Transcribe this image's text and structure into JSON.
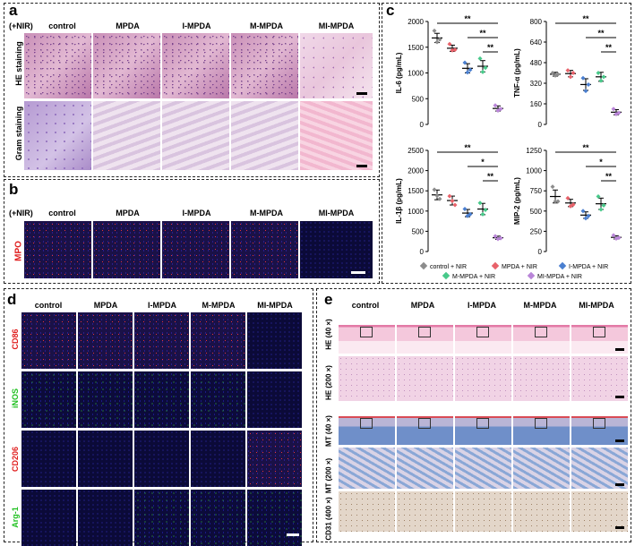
{
  "panel_letters": {
    "a": "a",
    "b": "b",
    "c": "c",
    "d": "d",
    "e": "e"
  },
  "nir_tag": "(+NIR)",
  "groups_abc": [
    "control",
    "MPDA",
    "I-MPDA",
    "M-MPDA",
    "MI-MPDA"
  ],
  "row_labels_a": [
    "HE staining",
    "Gram staining"
  ],
  "row_label_b": "MPO",
  "row_labels_d": [
    "CD86",
    "iNOS",
    "CD206",
    "Arg-1"
  ],
  "row_labels_e": [
    "HE (40 ×)",
    "HE (200 ×)",
    "MT (40 ×)",
    "MT (200 ×)",
    "CD31 (400 ×)"
  ],
  "legend": [
    "control + NIR",
    "MPDA + NIR",
    "I-MPDA + NIR",
    "M-MPDA + NIR",
    "MI-MPDA + NIR"
  ],
  "colors": {
    "control": "#8c8c8c",
    "MPDA": "#e8626a",
    "I-MPDA": "#4a7fd0",
    "M-MPDA": "#48c98a",
    "MI-MPDA": "#b985d8"
  },
  "chart_data": [
    {
      "type": "scatter",
      "ylabel": "IL-6 (pg/mL)",
      "ylim": [
        0,
        2000
      ],
      "yticks": [
        0,
        500,
        1000,
        1500,
        2000
      ],
      "categories": [
        "control",
        "MPDA",
        "I-MPDA",
        "M-MPDA",
        "MI-MPDA"
      ],
      "means": [
        1680,
        1480,
        1090,
        1130,
        310
      ],
      "errors": [
        90,
        60,
        90,
        110,
        50
      ],
      "points": [
        [
          1820,
          1600,
          1650
        ],
        [
          1560,
          1440,
          1450
        ],
        [
          1200,
          1010,
          1060
        ],
        [
          1280,
          1020,
          1100
        ],
        [
          370,
          270,
          300
        ]
      ],
      "significance": [
        "**",
        "**",
        "**"
      ]
    },
    {
      "type": "scatter",
      "ylabel": "TNF-α (pg/mL)",
      "ylim": [
        0,
        800
      ],
      "yticks": [
        0,
        160,
        320,
        480,
        640,
        800
      ],
      "categories": [
        "control",
        "MPDA",
        "I-MPDA",
        "M-MPDA",
        "MI-MPDA"
      ],
      "means": [
        390,
        395,
        310,
        370,
        95
      ],
      "errors": [
        15,
        25,
        45,
        35,
        20
      ],
      "points": [
        [
          400,
          380,
          390
        ],
        [
          420,
          370,
          400
        ],
        [
          360,
          260,
          310
        ],
        [
          400,
          340,
          370
        ],
        [
          120,
          80,
          90
        ]
      ],
      "significance": [
        "**",
        "**",
        "**"
      ]
    },
    {
      "type": "scatter",
      "ylabel": "IL-1β (pg/mL)",
      "ylim": [
        0,
        2500
      ],
      "yticks": [
        0,
        500,
        1000,
        1500,
        2000,
        2500
      ],
      "categories": [
        "control",
        "MPDA",
        "I-MPDA",
        "M-MPDA",
        "MI-MPDA"
      ],
      "means": [
        1400,
        1260,
        950,
        1050,
        340
      ],
      "errors": [
        120,
        110,
        90,
        140,
        40
      ],
      "points": [
        [
          1530,
          1380,
          1300
        ],
        [
          1370,
          1250,
          1150
        ],
        [
          1050,
          880,
          920
        ],
        [
          1200,
          920,
          1030
        ],
        [
          380,
          310,
          330
        ]
      ],
      "significance": [
        "**",
        "*",
        "**"
      ]
    },
    {
      "type": "scatter",
      "ylabel": "MIP-2 (pg/mL)",
      "ylim": [
        0,
        1250
      ],
      "yticks": [
        0,
        250,
        500,
        750,
        1000,
        1250
      ],
      "categories": [
        "control",
        "MPDA",
        "I-MPDA",
        "M-MPDA",
        "MI-MPDA"
      ],
      "means": [
        680,
        600,
        450,
        590,
        175
      ],
      "errors": [
        80,
        45,
        40,
        70,
        20
      ],
      "points": [
        [
          800,
          620,
          620
        ],
        [
          660,
          560,
          580
        ],
        [
          500,
          410,
          440
        ],
        [
          680,
          520,
          570
        ],
        [
          200,
          160,
          170
        ]
      ],
      "significance": [
        "**",
        "*",
        "**"
      ]
    }
  ]
}
